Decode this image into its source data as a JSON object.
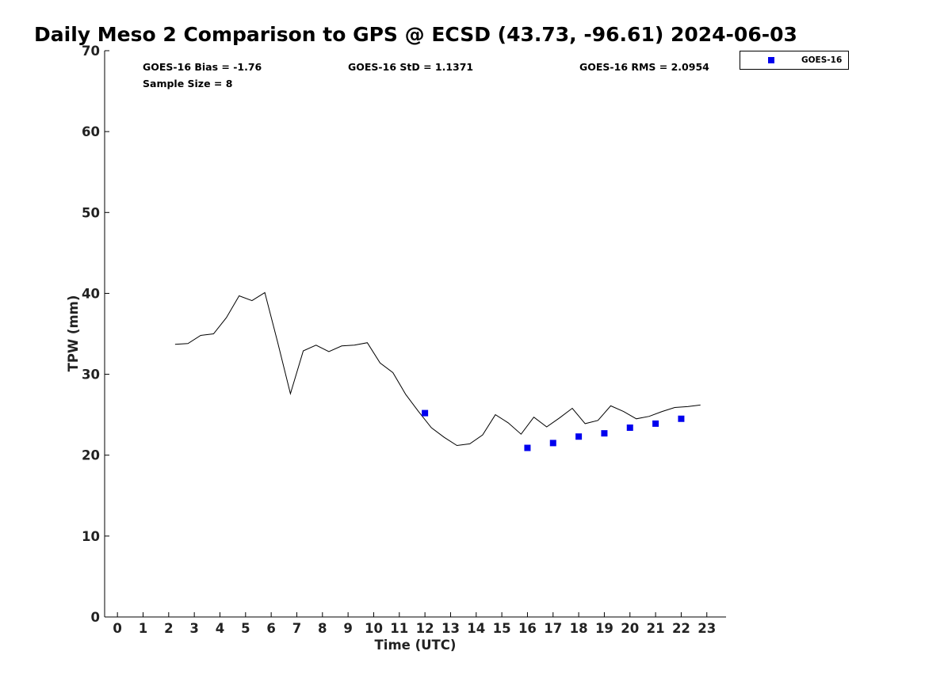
{
  "chart_data": {
    "type": "scatter",
    "title": "Daily Meso 2 Comparison to GPS @ ECSD (43.73, -96.61) 2024-06-03",
    "xlabel": "Time (UTC)",
    "ylabel": "TPW (mm)",
    "xlim": [
      -0.5,
      23.75
    ],
    "ylim": [
      0,
      70
    ],
    "x_ticks": [
      "0",
      "1",
      "2",
      "3",
      "4",
      "5",
      "6",
      "7",
      "8",
      "9",
      "10",
      "11",
      "12",
      "13",
      "14",
      "15",
      "16",
      "17",
      "18",
      "19",
      "20",
      "21",
      "22",
      "23"
    ],
    "y_ticks": [
      "0",
      "10",
      "20",
      "30",
      "40",
      "50",
      "60",
      "70"
    ],
    "grid": false,
    "legend": {
      "position": "top-right",
      "entries": [
        "GOES-16"
      ]
    },
    "stats": {
      "bias": "GOES-16 Bias = -1.76",
      "std": "GOES-16 StD = 1.1371",
      "rms": "GOES-16 RMS = 2.0954",
      "sample": "Sample Size = 8"
    },
    "series": [
      {
        "kind": "line",
        "color": "#000000",
        "x": [
          2.25,
          2.75,
          3.25,
          3.75,
          4.25,
          4.75,
          5.25,
          5.75,
          6.25,
          6.75,
          7.25,
          7.75,
          8.25,
          8.75,
          9.25,
          9.75,
          10.25,
          10.75,
          11.25,
          11.75,
          12.25,
          12.75,
          13.25,
          13.75,
          14.25,
          14.75,
          15.25,
          15.75,
          16.25,
          16.75,
          17.25,
          17.75,
          18.25,
          18.75,
          19.25,
          19.75,
          20.25,
          20.75,
          21.25,
          21.75,
          22.25,
          22.75
        ],
        "y": [
          33.7,
          33.8,
          34.8,
          35.0,
          37.0,
          39.7,
          39.1,
          40.1,
          34.0,
          27.6,
          32.9,
          33.6,
          32.8,
          33.5,
          33.6,
          33.9,
          31.4,
          30.2,
          27.5,
          25.4,
          23.4,
          22.2,
          21.2,
          21.4,
          22.5,
          25.0,
          24.0,
          22.6,
          24.7,
          23.5,
          24.6,
          25.8,
          23.9,
          24.3,
          26.1,
          25.4,
          24.5,
          24.8,
          25.4,
          25.9,
          26.0,
          26.2
        ]
      },
      {
        "kind": "scatter",
        "name": "GOES-16",
        "color": "#0000ee",
        "x": [
          12,
          16,
          17,
          18,
          19,
          20,
          21,
          22
        ],
        "y": [
          25.2,
          20.9,
          21.5,
          22.3,
          22.7,
          23.4,
          23.9,
          24.5
        ]
      }
    ]
  }
}
